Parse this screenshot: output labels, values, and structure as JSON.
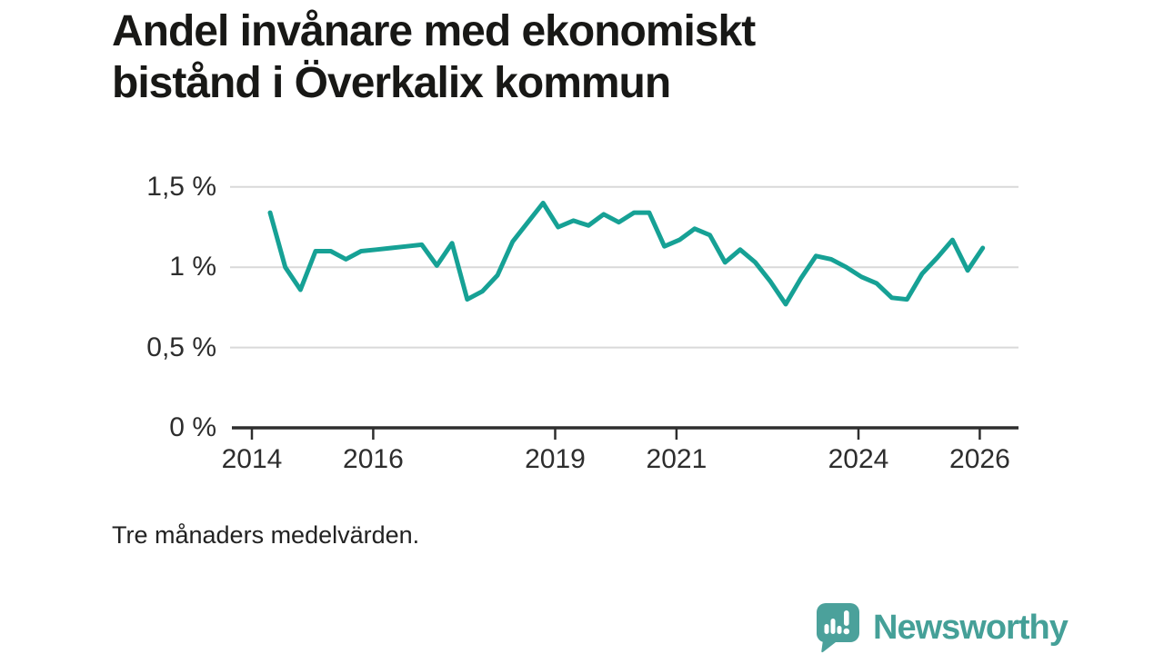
{
  "page": {
    "title_lines": [
      "Andel invånare med ekonomiskt",
      "bistånd i Överkalix kommun"
    ],
    "footnote": "Tre månaders medelvärden.",
    "brand": {
      "name": "Newsworthy"
    }
  },
  "colors": {
    "series_line": "#16a195",
    "gridline": "#d9d9d9",
    "axis": "#2e2e2e",
    "title_text": "#181816",
    "tick_text": "#2d2d2d",
    "logo_teal": "#45a098"
  },
  "chart_data": {
    "type": "line",
    "title": "Andel invånare med ekonomiskt bistånd i Överkalix kommun",
    "note": "Tre månaders medelvärden.",
    "unit": "%",
    "xlabel": "",
    "ylabel": "",
    "grid": "horizontal",
    "legend": "none",
    "ylim": [
      0,
      1.65
    ],
    "xlim_years": [
      2013.67,
      2026.66
    ],
    "x_start_year": 2014.3,
    "x_step_years": 0.25,
    "values": [
      1.34,
      1.0,
      0.86,
      1.1,
      1.1,
      1.05,
      1.1,
      1.11,
      1.12,
      1.13,
      1.14,
      1.01,
      1.15,
      0.8,
      0.85,
      0.95,
      1.16,
      1.28,
      1.4,
      1.25,
      1.29,
      1.26,
      1.33,
      1.28,
      1.34,
      1.34,
      1.13,
      1.17,
      1.24,
      1.2,
      1.03,
      1.11,
      1.03,
      0.91,
      0.77,
      0.93,
      1.07,
      1.05,
      1.0,
      0.94,
      0.9,
      0.81,
      0.8,
      0.96,
      1.06,
      1.17,
      0.98,
      1.12
    ],
    "y_ticks": [
      {
        "label": "1,5 %",
        "value": 1.5
      },
      {
        "label": "1 %",
        "value": 1.0
      },
      {
        "label": "0,5 %",
        "value": 0.5
      },
      {
        "label": "0 %",
        "value": 0.0
      }
    ],
    "x_ticks": [
      {
        "label": "2014",
        "year": 2014
      },
      {
        "label": "2016",
        "year": 2016
      },
      {
        "label": "2019",
        "year": 2019
      },
      {
        "label": "2021",
        "year": 2021
      },
      {
        "label": "2024",
        "year": 2024
      },
      {
        "label": "2026",
        "year": 2026
      }
    ]
  }
}
